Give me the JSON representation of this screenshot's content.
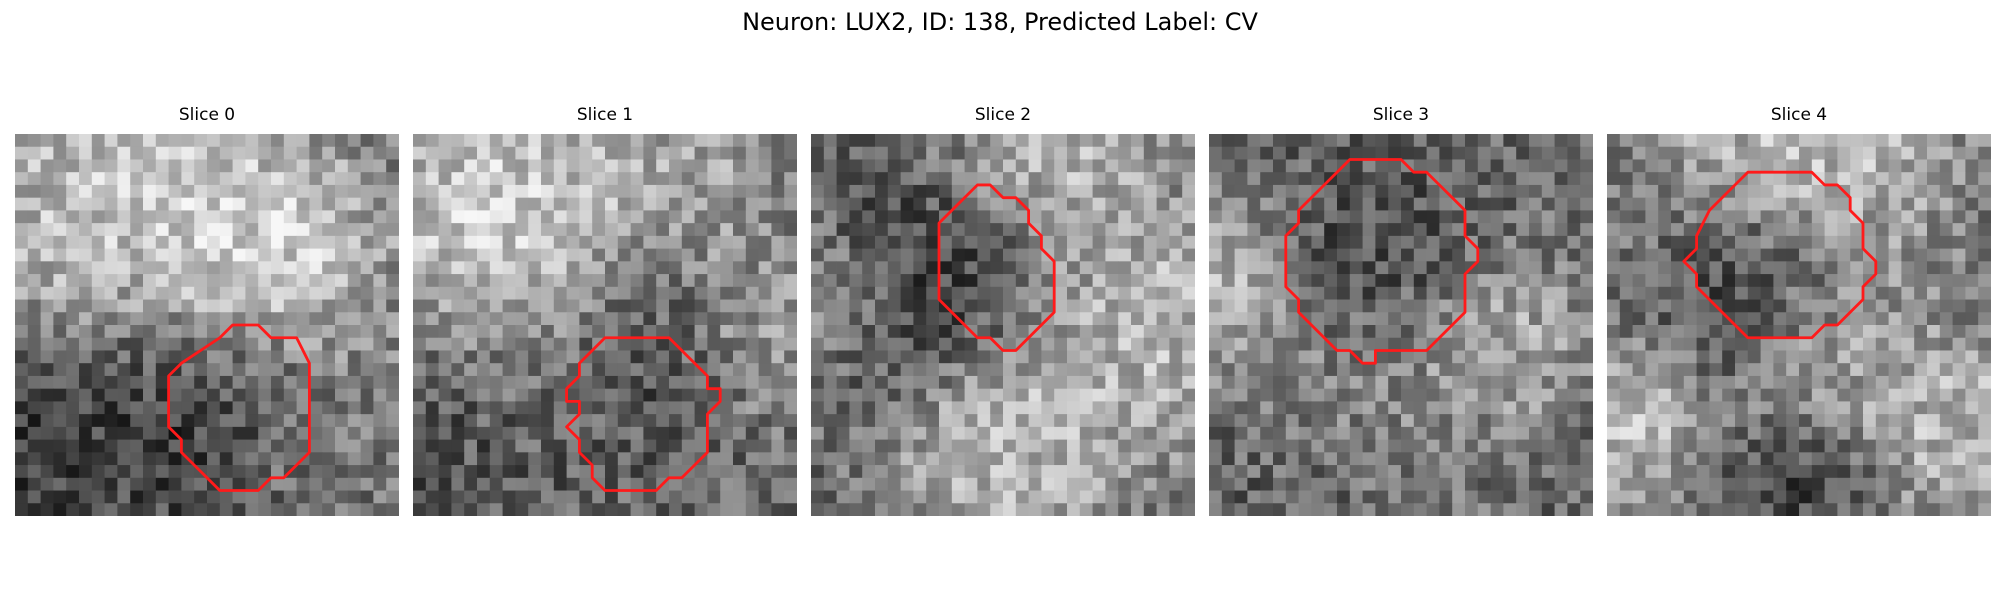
{
  "figure": {
    "title": "Neuron: LUX2, ID: 138, Predicted Label: CV"
  },
  "panels": [
    {
      "title": "Slice 0"
    },
    {
      "title": "Slice 1"
    },
    {
      "title": "Slice 2"
    },
    {
      "title": "Slice 3"
    },
    {
      "title": "Slice 4"
    }
  ],
  "colors": {
    "roi_contour": "#ff1a1a",
    "colormap": "gray"
  }
}
